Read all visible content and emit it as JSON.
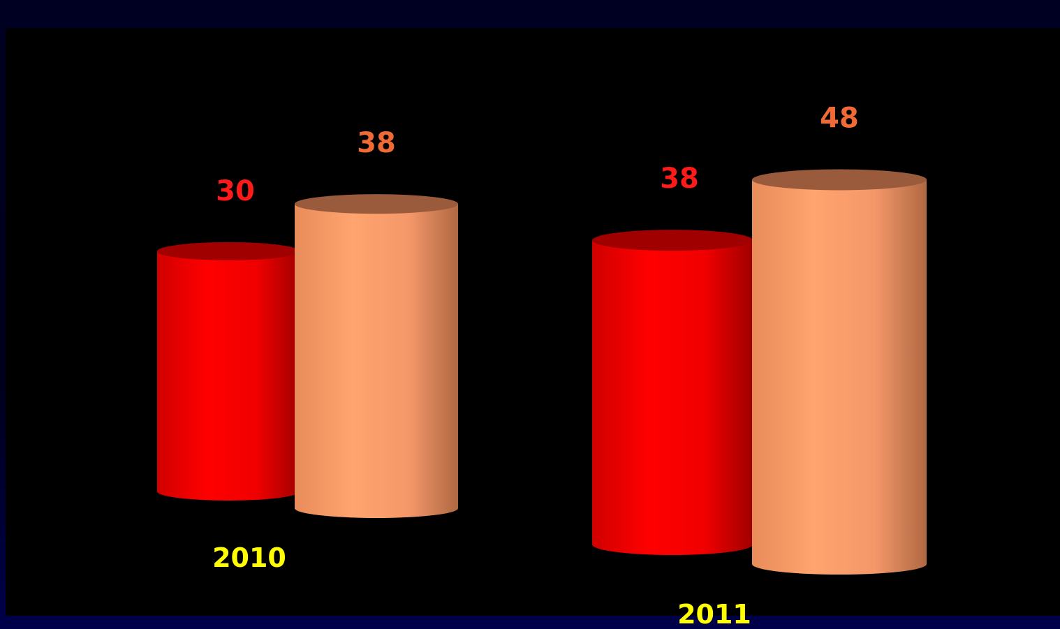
{
  "chart_data": {
    "type": "bar",
    "style": "3d-cylinder",
    "categories": [
      "2010",
      "2011"
    ],
    "series": [
      {
        "values": [
          30,
          38
        ],
        "color": "#ff0000",
        "label_color": "#ff1a1a"
      },
      {
        "values": [
          38,
          48
        ],
        "color": "#ffa06a",
        "label_color": "#f06a36"
      }
    ],
    "title": "",
    "xlabel": "",
    "ylabel": "",
    "ylim": [
      0,
      48
    ],
    "grid": false,
    "legend": "none",
    "colors": {
      "background": "#000000",
      "frame": "#000030",
      "category_label": "#ffff00"
    }
  }
}
